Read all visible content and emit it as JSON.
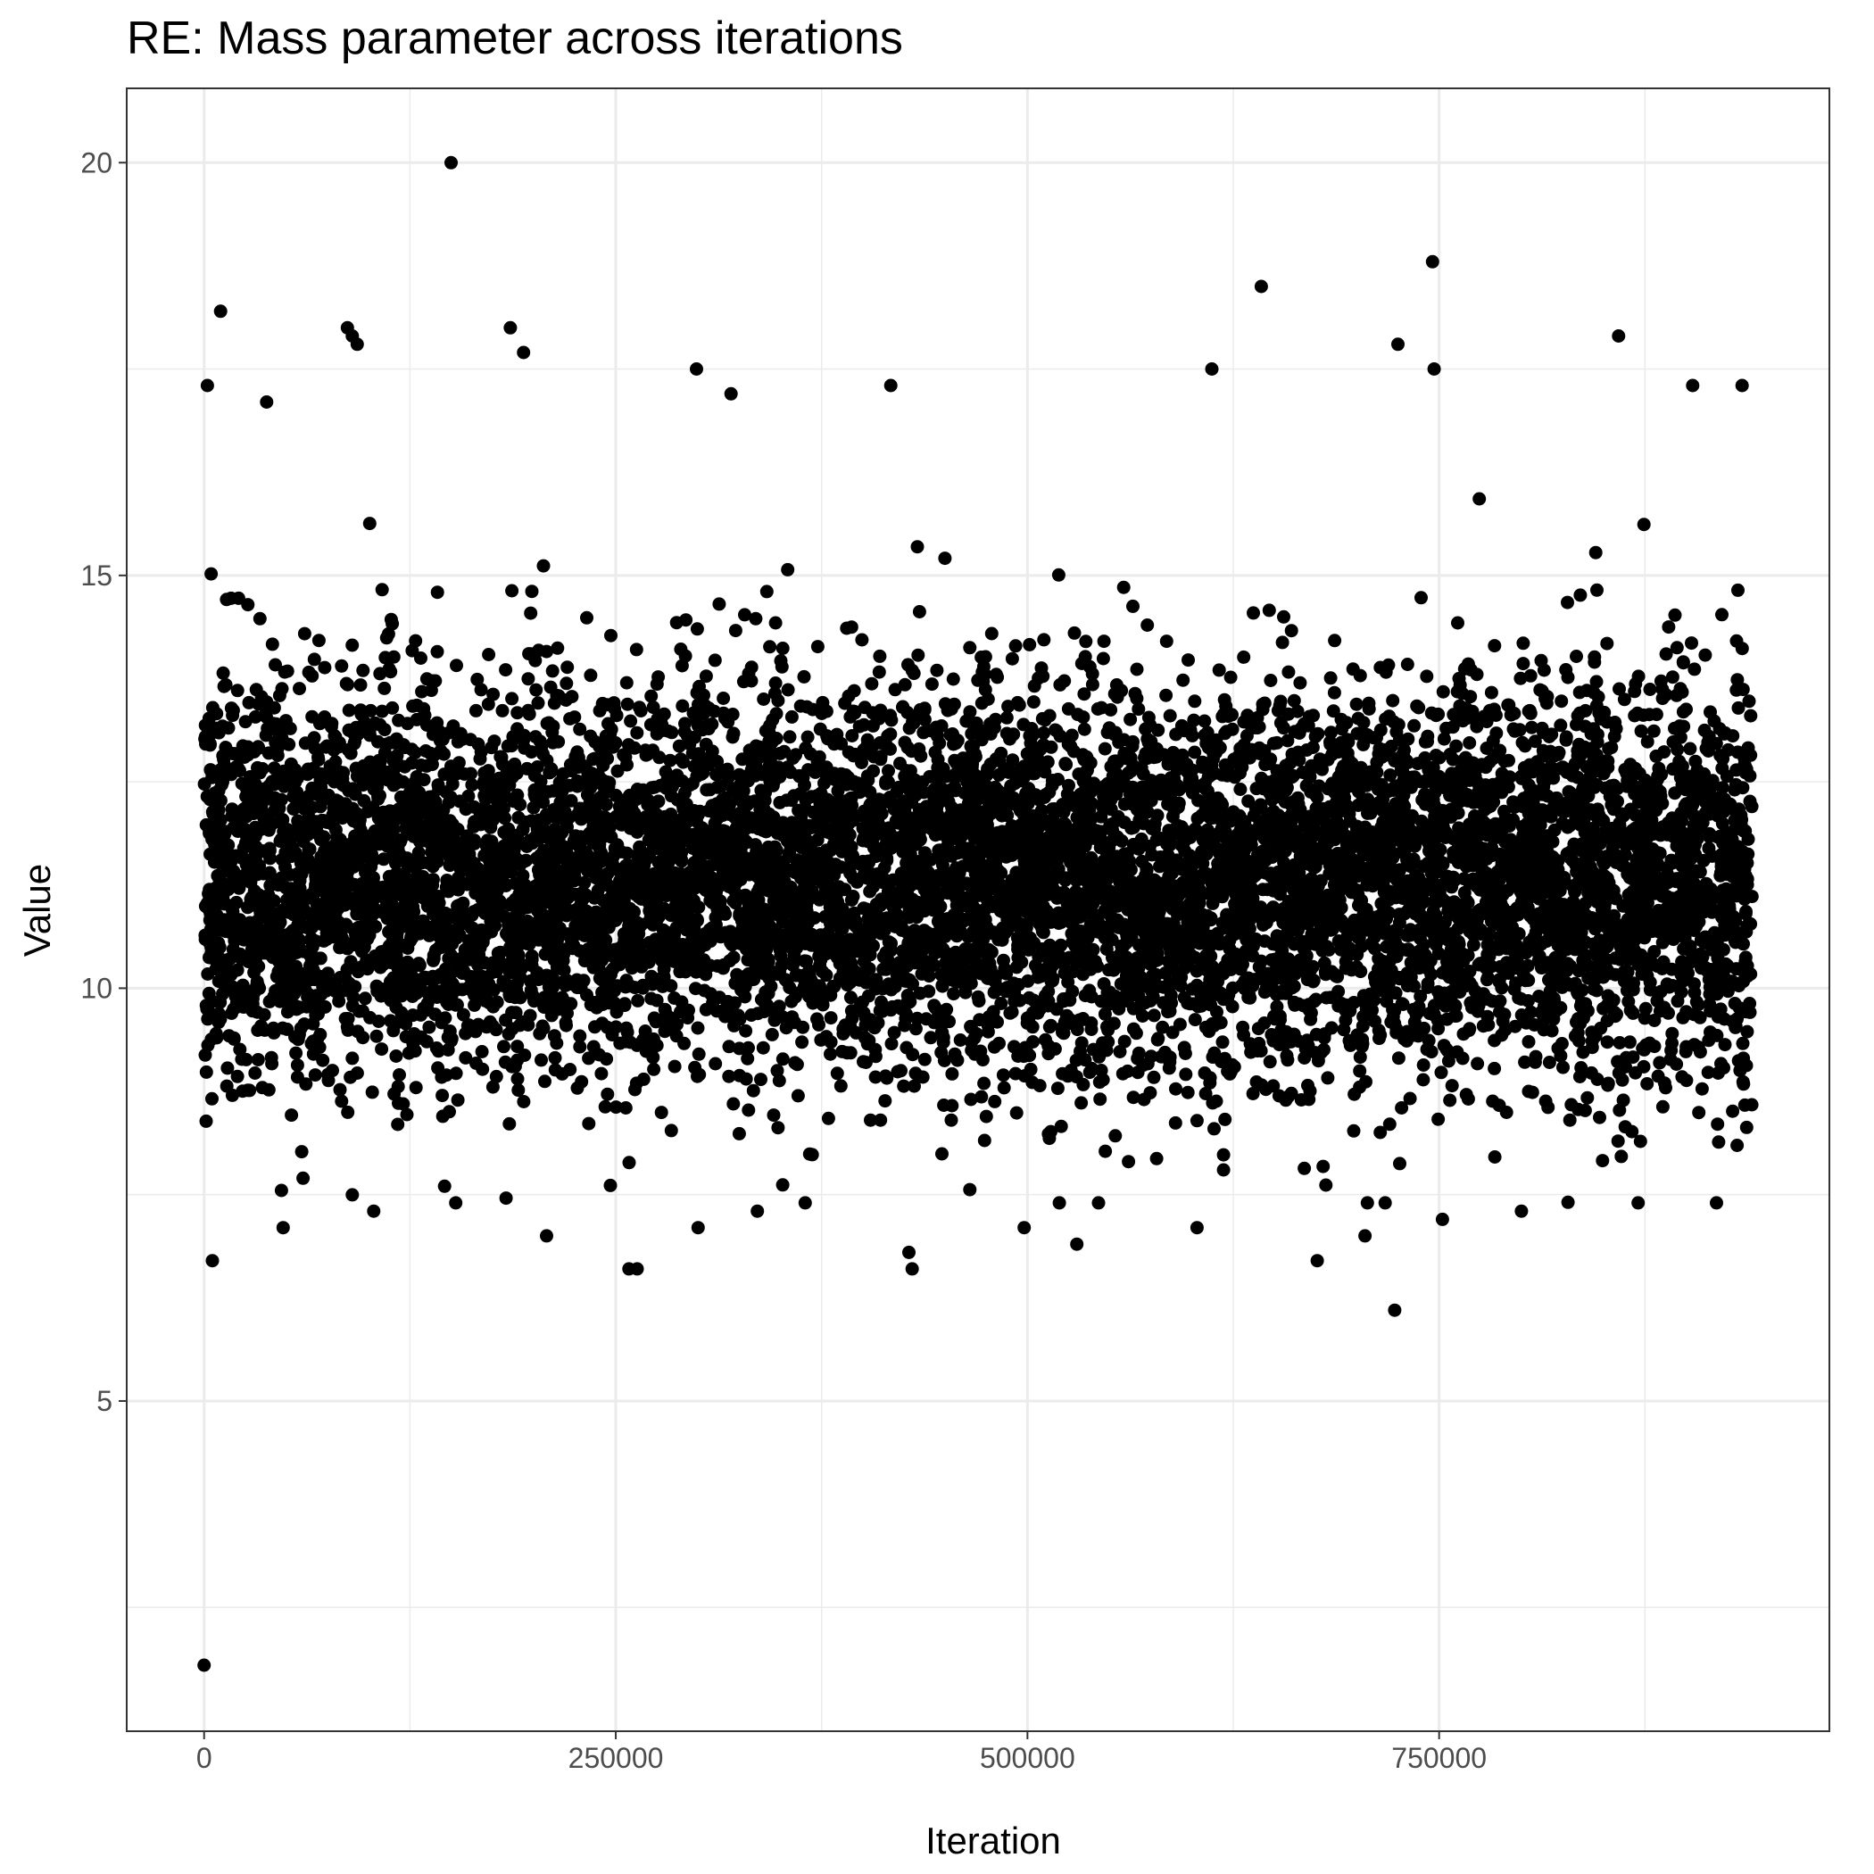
{
  "chart_data": {
    "type": "scatter",
    "title": "RE: Mass parameter across iterations",
    "xlabel": "Iteration",
    "ylabel": "Value",
    "xlim": [
      -47000,
      987000
    ],
    "ylim": [
      1.0,
      20.9
    ],
    "x_ticks": [
      0,
      250000,
      500000,
      750000
    ],
    "x_tick_labels": [
      "0",
      "250000",
      "500000",
      "750000"
    ],
    "y_ticks": [
      5,
      10,
      15,
      20
    ],
    "y_tick_labels": [
      "5",
      "10",
      "15",
      "20"
    ],
    "grid": true,
    "point_color": "#000000",
    "series": [
      {
        "name": "Mass parameter",
        "x_range": [
          0,
          940000
        ],
        "bulk_mean": 11.3,
        "bulk_sd": 1.2,
        "description_of_density": "dense band between ~10 and ~13",
        "outliers": [
          {
            "x": 0,
            "y": 1.8
          },
          {
            "x": 150000,
            "y": 20.0
          },
          {
            "x": 10000,
            "y": 18.2
          },
          {
            "x": 746000,
            "y": 18.8
          },
          {
            "x": 642000,
            "y": 18.5
          },
          {
            "x": 87000,
            "y": 18.0
          },
          {
            "x": 186000,
            "y": 18.0
          },
          {
            "x": 90000,
            "y": 17.9
          },
          {
            "x": 93000,
            "y": 17.8
          },
          {
            "x": 194000,
            "y": 17.7
          },
          {
            "x": 725000,
            "y": 17.8
          },
          {
            "x": 859000,
            "y": 17.9
          },
          {
            "x": 2000,
            "y": 17.3
          },
          {
            "x": 38000,
            "y": 17.1
          },
          {
            "x": 299000,
            "y": 17.5
          },
          {
            "x": 417000,
            "y": 17.3
          },
          {
            "x": 612000,
            "y": 17.5
          },
          {
            "x": 747000,
            "y": 17.5
          },
          {
            "x": 320000,
            "y": 17.2
          },
          {
            "x": 904000,
            "y": 17.3
          },
          {
            "x": 934000,
            "y": 17.3
          },
          {
            "x": 5000,
            "y": 6.7
          },
          {
            "x": 258000,
            "y": 6.6
          },
          {
            "x": 263000,
            "y": 6.6
          },
          {
            "x": 430000,
            "y": 6.6
          },
          {
            "x": 428000,
            "y": 6.8
          },
          {
            "x": 676000,
            "y": 6.7
          },
          {
            "x": 723000,
            "y": 6.1
          },
          {
            "x": 48000,
            "y": 7.1
          },
          {
            "x": 103000,
            "y": 7.3
          },
          {
            "x": 208000,
            "y": 7.0
          },
          {
            "x": 300000,
            "y": 7.1
          },
          {
            "x": 336000,
            "y": 7.3
          },
          {
            "x": 498000,
            "y": 7.1
          },
          {
            "x": 530000,
            "y": 6.9
          },
          {
            "x": 603000,
            "y": 7.1
          },
          {
            "x": 705000,
            "y": 7.0
          },
          {
            "x": 752000,
            "y": 7.2
          },
          {
            "x": 800000,
            "y": 7.3
          }
        ]
      }
    ]
  }
}
